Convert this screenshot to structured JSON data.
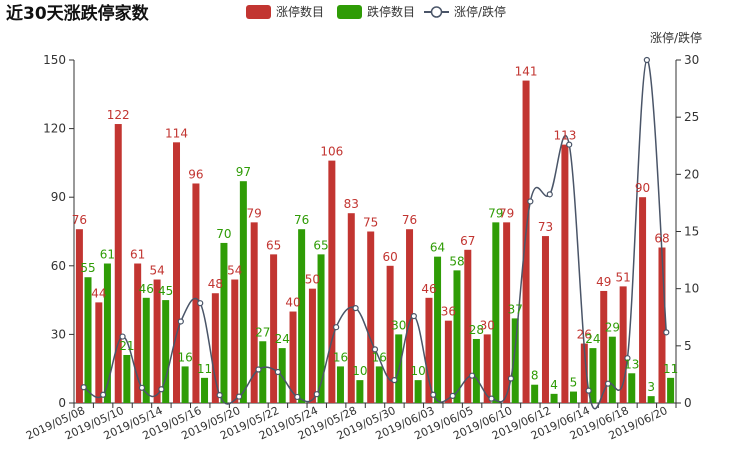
{
  "chart_data": {
    "type": "bar",
    "title": "近30天涨跌停家数",
    "legend": [
      {
        "name": "涨停数目",
        "color": "#c23531",
        "kind": "bar"
      },
      {
        "name": "跌停数目",
        "color": "#2f9c06",
        "kind": "bar"
      },
      {
        "name": "涨停/跌停",
        "color": "#4a5568",
        "kind": "line"
      }
    ],
    "legend_position": "top-center",
    "y_left": {
      "min": 0,
      "max": 150,
      "ticks": [
        "0",
        "30",
        "60",
        "90",
        "120",
        "150"
      ]
    },
    "y_right": {
      "name": "涨停/跌停",
      "min": 0,
      "max": 30,
      "ticks": [
        "0",
        "5",
        "10",
        "15",
        "20",
        "25",
        "30"
      ]
    },
    "grid": false,
    "categories": [
      "2019/05/08",
      "2019/05/09",
      "2019/05/10",
      "2019/05/13",
      "2019/05/14",
      "2019/05/15",
      "2019/05/16",
      "2019/05/17",
      "2019/05/20",
      "2019/05/21",
      "2019/05/22",
      "2019/05/23",
      "2019/05/24",
      "2019/05/27",
      "2019/05/28",
      "2019/05/29",
      "2019/05/30",
      "2019/05/31",
      "2019/06/03",
      "2019/06/04",
      "2019/06/05",
      "2019/06/06",
      "2019/06/10",
      "2019/06/11",
      "2019/06/12",
      "2019/06/13",
      "2019/06/14",
      "2019/06/17",
      "2019/06/18",
      "2019/06/19",
      "2019/06/20"
    ],
    "x_tick_labels": [
      "2019/05/08",
      "2019/05/10",
      "2019/05/14",
      "2019/05/16",
      "2019/05/20",
      "2019/05/22",
      "2019/05/24",
      "2019/05/28",
      "2019/05/30",
      "2019/06/03",
      "2019/06/05",
      "2019/06/10",
      "2019/06/12",
      "2019/06/14",
      "2019/06/18",
      "2019/06/20"
    ],
    "series": [
      {
        "name": "涨停数目",
        "type": "bar",
        "color": "#c23531",
        "values": [
          76,
          44,
          122,
          61,
          54,
          114,
          96,
          48,
          54,
          79,
          65,
          40,
          50,
          106,
          83,
          75,
          60,
          76,
          46,
          36,
          67,
          30,
          79,
          141,
          73,
          113,
          26,
          49,
          51,
          90,
          68
        ]
      },
      {
        "name": "跌停数目",
        "type": "bar",
        "color": "#2f9c06",
        "values": [
          55,
          61,
          21,
          46,
          45,
          16,
          11,
          70,
          97,
          27,
          24,
          76,
          65,
          16,
          10,
          16,
          30,
          10,
          64,
          58,
          28,
          79,
          37,
          8,
          4,
          5,
          24,
          29,
          13,
          3,
          11
        ]
      },
      {
        "name": "涨停/跌停",
        "type": "line",
        "axis": "right",
        "color": "#4a5568",
        "values": [
          1.38,
          0.72,
          5.81,
          1.33,
          1.2,
          7.13,
          8.73,
          0.69,
          0.56,
          2.93,
          2.71,
          0.53,
          0.77,
          6.63,
          8.3,
          4.69,
          2.0,
          7.6,
          0.72,
          0.62,
          2.39,
          0.38,
          2.14,
          17.63,
          18.25,
          22.6,
          1.08,
          1.69,
          3.92,
          30.0,
          6.18
        ]
      }
    ]
  }
}
